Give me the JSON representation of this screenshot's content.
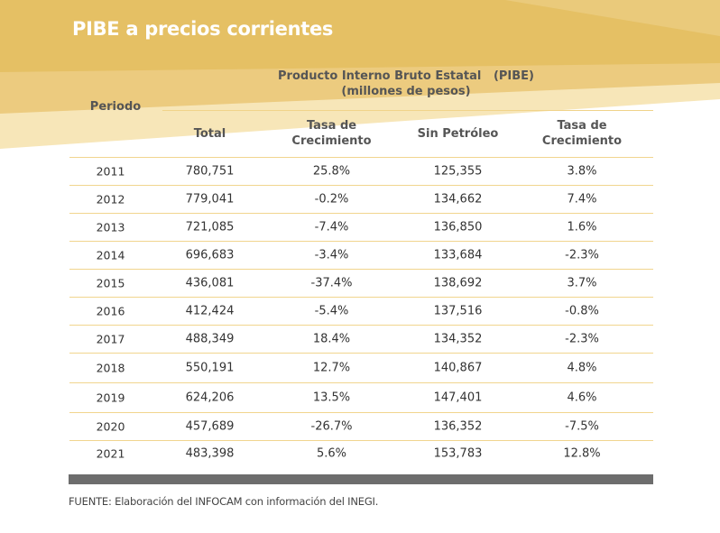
{
  "title": "PIBE a precios corrientes",
  "header": {
    "group_line1": "Producto Interno Bruto Estatal   (PIBE)",
    "group_line2": "(millones de pesos)",
    "periodo": "Periodo",
    "total": "Total",
    "tasa1_line1": "Tasa de",
    "tasa1_line2": "Crecimiento",
    "sin_petroleo": "Sin Petróleo",
    "tasa2_line1": "Tasa de",
    "tasa2_line2": "Crecimiento"
  },
  "rows": [
    {
      "year": "2011",
      "total": "780,751",
      "tasa": "25.8%",
      "sin": "125,355",
      "tasa2": "3.8%"
    },
    {
      "year": "2012",
      "total": "779,041",
      "tasa": "-0.2%",
      "sin": "134,662",
      "tasa2": "7.4%"
    },
    {
      "year": "2013",
      "total": "721,085",
      "tasa": "-7.4%",
      "sin": "136,850",
      "tasa2": "1.6%"
    },
    {
      "year": "2014",
      "total": "696,683",
      "tasa": "-3.4%",
      "sin": "133,684",
      "tasa2": "-2.3%"
    },
    {
      "year": "2015",
      "total": "436,081",
      "tasa": "-37.4%",
      "sin": "138,692",
      "tasa2": "3.7%"
    },
    {
      "year": "2016",
      "total": "412,424",
      "tasa": "-5.4%",
      "sin": "137,516",
      "tasa2": "-0.8%"
    },
    {
      "year": "2017",
      "total": "488,349",
      "tasa": "18.4%",
      "sin": "134,352",
      "tasa2": "-2.3%"
    },
    {
      "year": "2018",
      "total": "550,191",
      "tasa": "12.7%",
      "sin": "140,867",
      "tasa2": "4.8%"
    },
    {
      "year": "2019",
      "total": "624,206",
      "tasa": "13.5%",
      "sin": "147,401",
      "tasa2": "4.6%"
    },
    {
      "year": "2020",
      "total": "457,689",
      "tasa": "-26.7%",
      "sin": "136,352",
      "tasa2": "-7.5%"
    },
    {
      "year": "2021",
      "total": "483,398",
      "tasa": "5.6%",
      "sin": "153,783",
      "tasa2": "12.8%"
    }
  ],
  "source": "FUENTE: Elaboración del INFOCAM con información del INEGI.",
  "colors": {
    "banner_dark": "#e6c26a",
    "banner_light": "#f6e4b4",
    "row_rule": "#f1d58e",
    "footer_bar": "#6d6d6d"
  }
}
